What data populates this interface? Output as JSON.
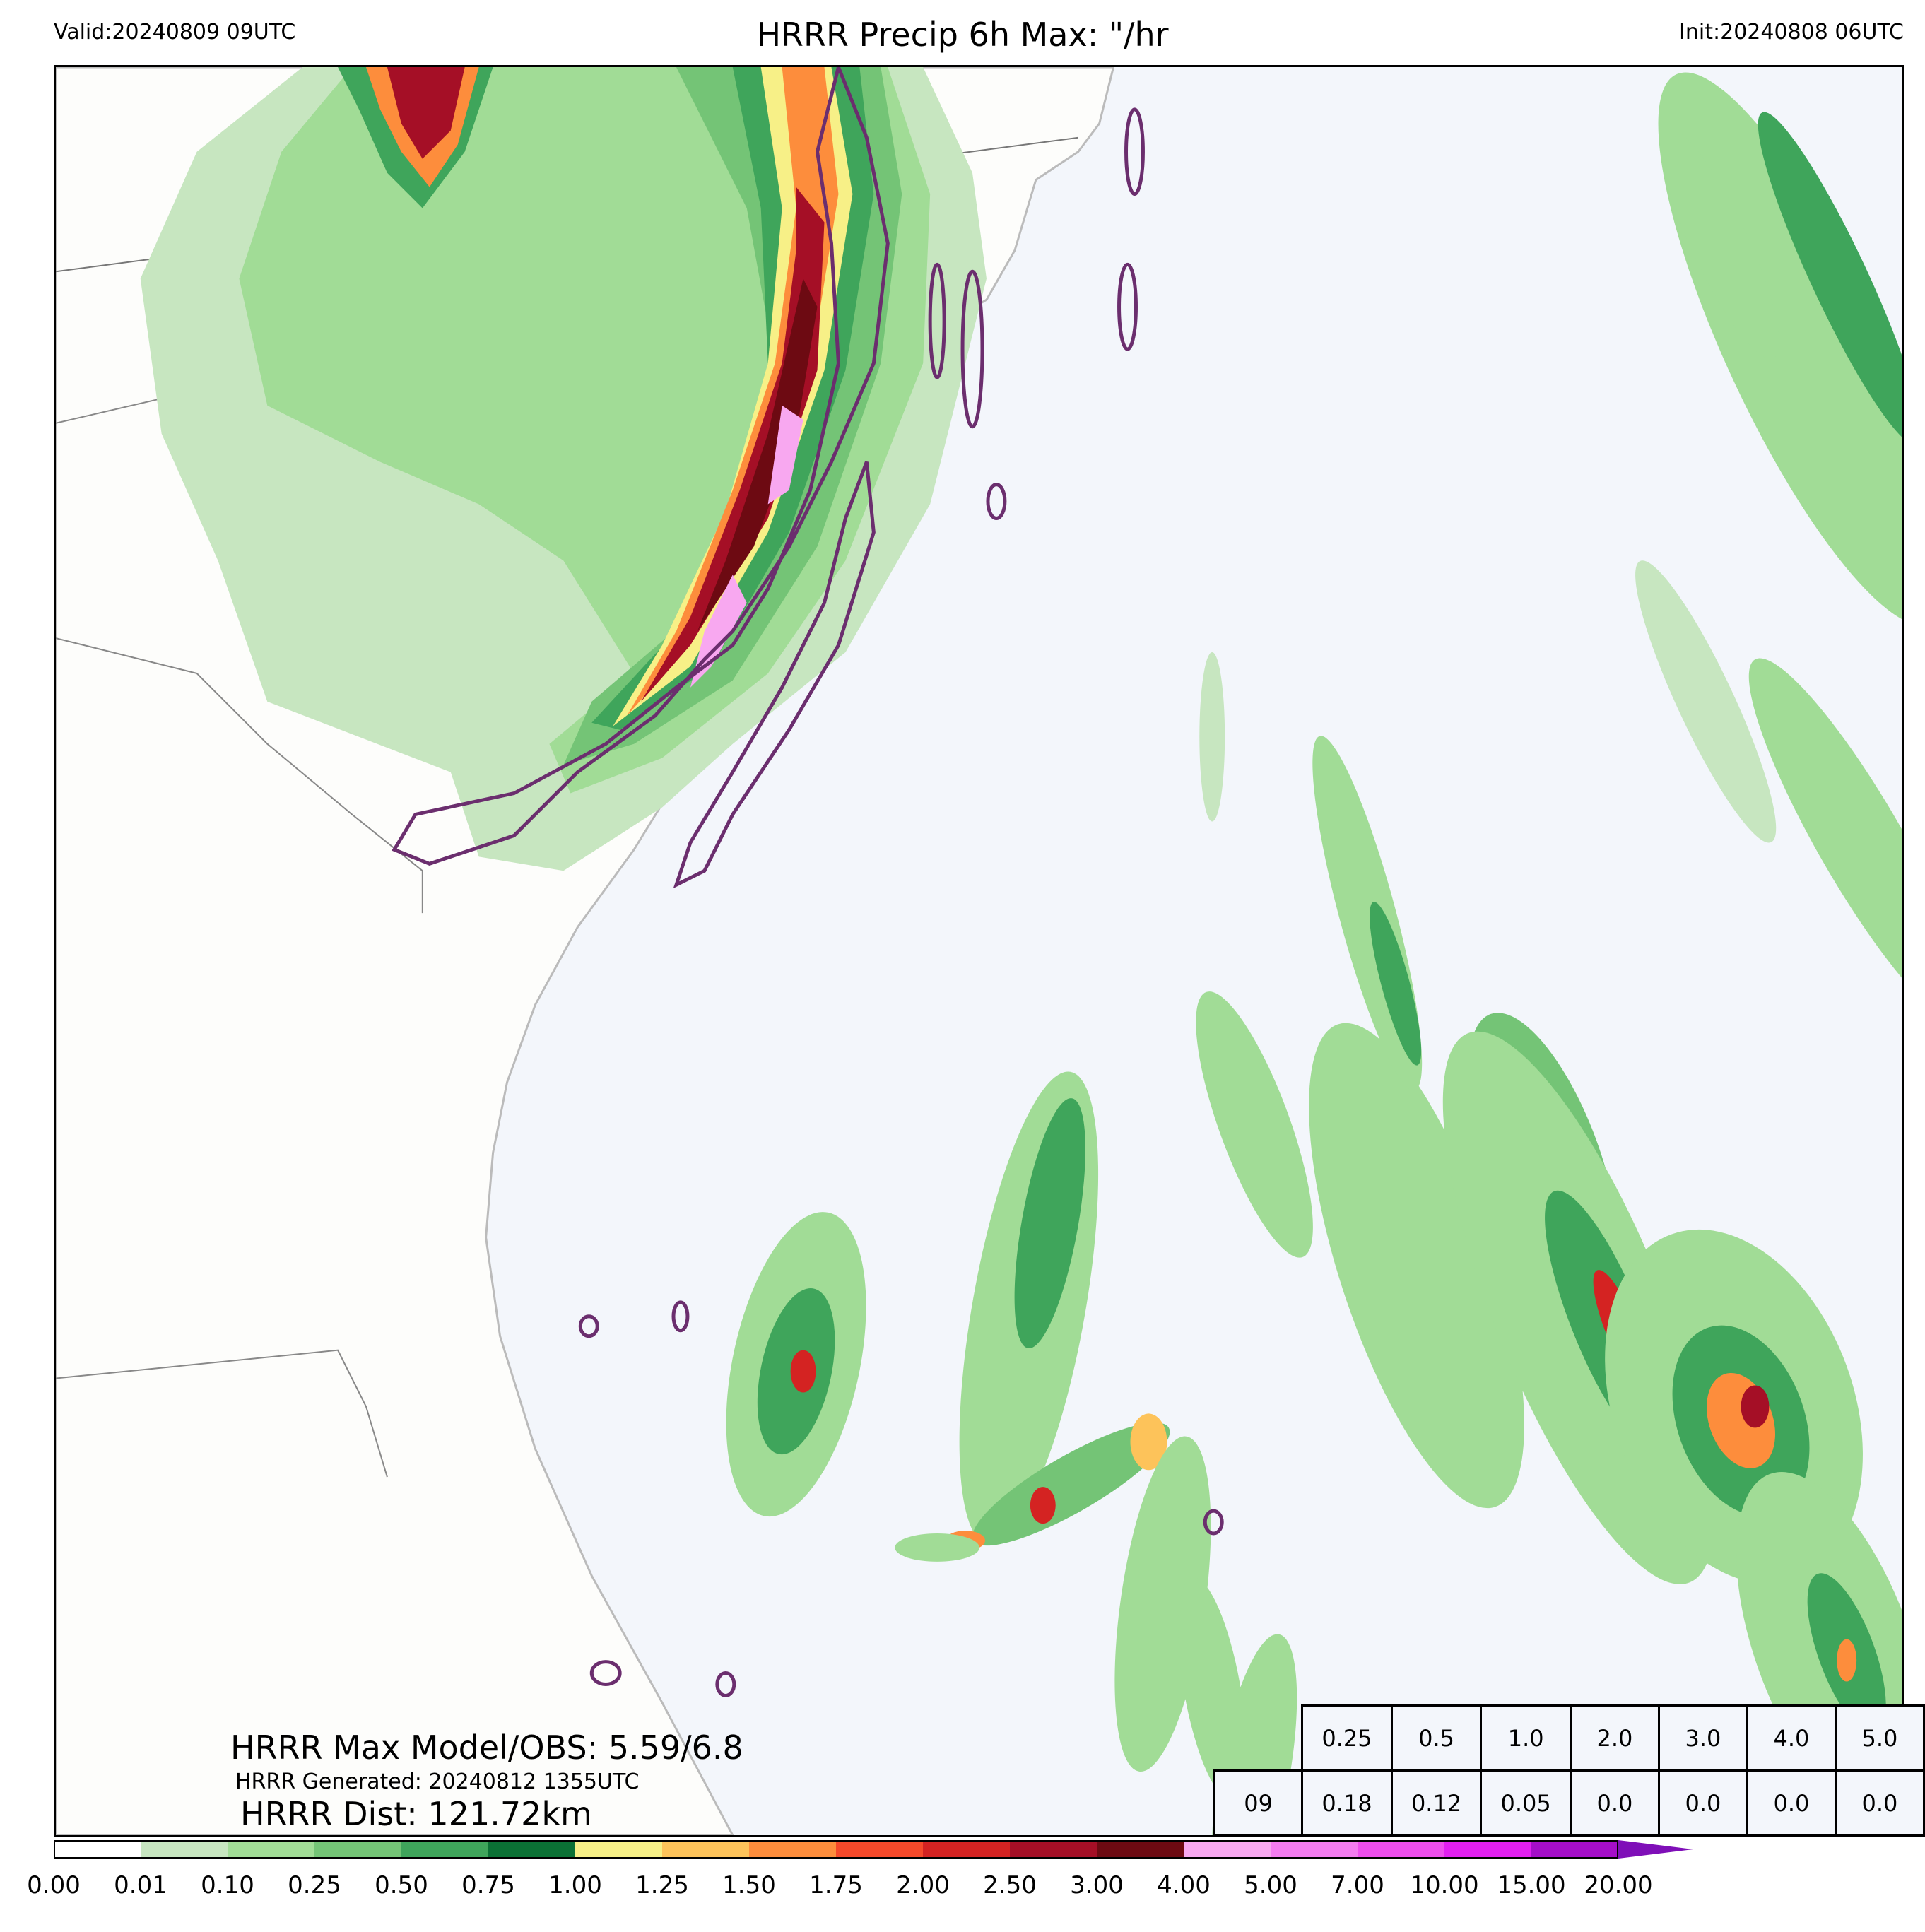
{
  "header": {
    "valid": "Valid:20240809 09UTC",
    "title": "HRRR Precip 6h Max: \"/hr",
    "init": "Init:20240808 06UTC"
  },
  "stats": {
    "max_line": "HRRR Max Model/OBS: 5.59/6.8",
    "generated_line": "HRRR Generated: 20240812 1355UTC",
    "dist_line": "HRRR Dist: 121.72km"
  },
  "threshold_table": {
    "thresholds": [
      "0.25",
      "0.5",
      "1.0",
      "2.0",
      "3.0",
      "4.0",
      "5.0"
    ],
    "row_label": "09",
    "values": [
      "0.18",
      "0.12",
      "0.05",
      "0.0",
      "0.0",
      "0.0",
      "0.0"
    ]
  },
  "colorbar": {
    "ticks": [
      "0.00",
      "0.01",
      "0.10",
      "0.25",
      "0.50",
      "0.75",
      "1.00",
      "1.25",
      "1.50",
      "1.75",
      "2.00",
      "2.50",
      "3.00",
      "4.00",
      "5.00",
      "7.00",
      "10.00",
      "15.00",
      "20.00"
    ],
    "colors": [
      "#ffffff",
      "#c7e6c0",
      "#a1dc96",
      "#74c476",
      "#3fa55b",
      "#0b7135",
      "#f7f087",
      "#fdc35a",
      "#fd8d3c",
      "#f5492a",
      "#d42322",
      "#a50f26",
      "#6d0a12",
      "#f8a8f0",
      "#f47cf0",
      "#ee4ded",
      "#e21ff0",
      "#a40ec8"
    ],
    "extend_color": "#7f0fb8"
  },
  "map_colors": {
    "land": "#fdfdfb",
    "ocean": "#f3f6fb",
    "outline_contour": "#6b2e6e",
    "border": "#707070",
    "coast": "#b8b8b8"
  }
}
